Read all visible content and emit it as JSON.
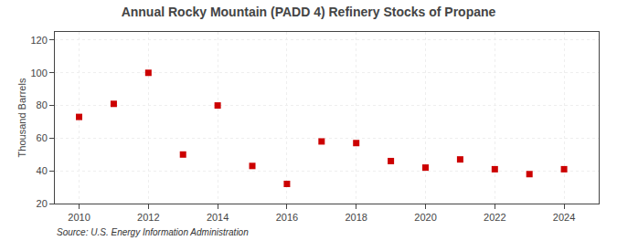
{
  "chart_data": {
    "type": "scatter",
    "title": "Annual Rocky Mountain (PADD 4) Refinery Stocks of Propane",
    "ylabel": "Thousand Barrels",
    "source": "Source: U.S. Energy Information Administration",
    "x": [
      2010,
      2011,
      2012,
      2013,
      2014,
      2015,
      2016,
      2017,
      2018,
      2019,
      2020,
      2021,
      2022,
      2023,
      2024
    ],
    "values": [
      73,
      81,
      100,
      50,
      80,
      43,
      32,
      58,
      57,
      46,
      42,
      47,
      41,
      38,
      41
    ],
    "color": "#cc0000",
    "marker": "square",
    "xlim": [
      2009.3,
      2025.0
    ],
    "xticks": [
      2010,
      2012,
      2014,
      2016,
      2018,
      2020,
      2022,
      2024
    ],
    "ylim": [
      20,
      125
    ],
    "yticks": [
      20,
      40,
      60,
      80,
      100,
      120
    ],
    "grid": true
  }
}
